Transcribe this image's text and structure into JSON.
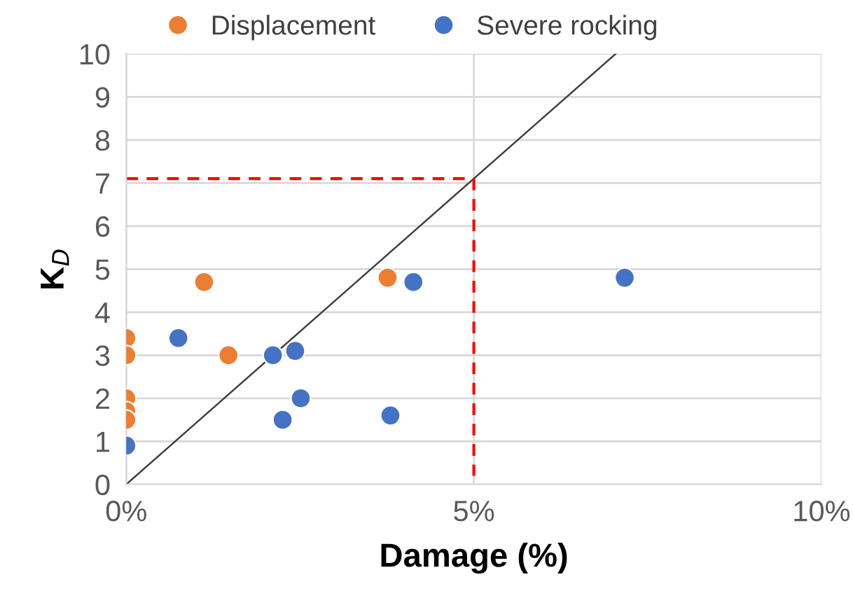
{
  "chart_data": {
    "type": "scatter",
    "xlabel": "Damage (%)",
    "ylabel": "K$_{D}$",
    "xlim": [
      0,
      10
    ],
    "ylim": [
      0,
      10
    ],
    "xticks": [
      {
        "value": 0,
        "label": "0%"
      },
      {
        "value": 5,
        "label": "5%"
      },
      {
        "value": 10,
        "label": "10%"
      }
    ],
    "yticks": [
      0,
      1,
      2,
      3,
      4,
      5,
      6,
      7,
      8,
      9,
      10
    ],
    "grid": true,
    "legend": "top",
    "marker": "circle",
    "series": [
      {
        "name": "Displacement",
        "color": "#ed7d31",
        "x": [
          0,
          0,
          0,
          0,
          0,
          1.12,
          1.47,
          3.76
        ],
        "values": [
          3.4,
          3.0,
          2.0,
          1.7,
          1.5,
          4.7,
          3.0,
          4.8
        ]
      },
      {
        "name": "Severe rocking",
        "color": "#4472c4",
        "x": [
          0,
          0.75,
          2.11,
          2.43,
          2.51,
          2.25,
          3.8,
          4.13,
          7.17
        ],
        "values": [
          0.9,
          3.4,
          3.0,
          3.1,
          2.0,
          1.5,
          1.6,
          4.7,
          4.8
        ]
      },
      {
        "type": "line",
        "color": "#404040",
        "x": [
          0,
          7.04
        ],
        "values": [
          0,
          10
        ],
        "line_style": "solid",
        "marker": "none"
      },
      {
        "type": "line",
        "color": "#ff0000",
        "x": [
          0,
          5
        ],
        "values": [
          7.1,
          7.1
        ],
        "line_style": "dashed",
        "marker": "none"
      },
      {
        "type": "line",
        "color": "#ff0000",
        "x": [
          5,
          5
        ],
        "values": [
          7.1,
          0.2
        ],
        "line_style": "dashed",
        "marker": "none"
      }
    ]
  }
}
